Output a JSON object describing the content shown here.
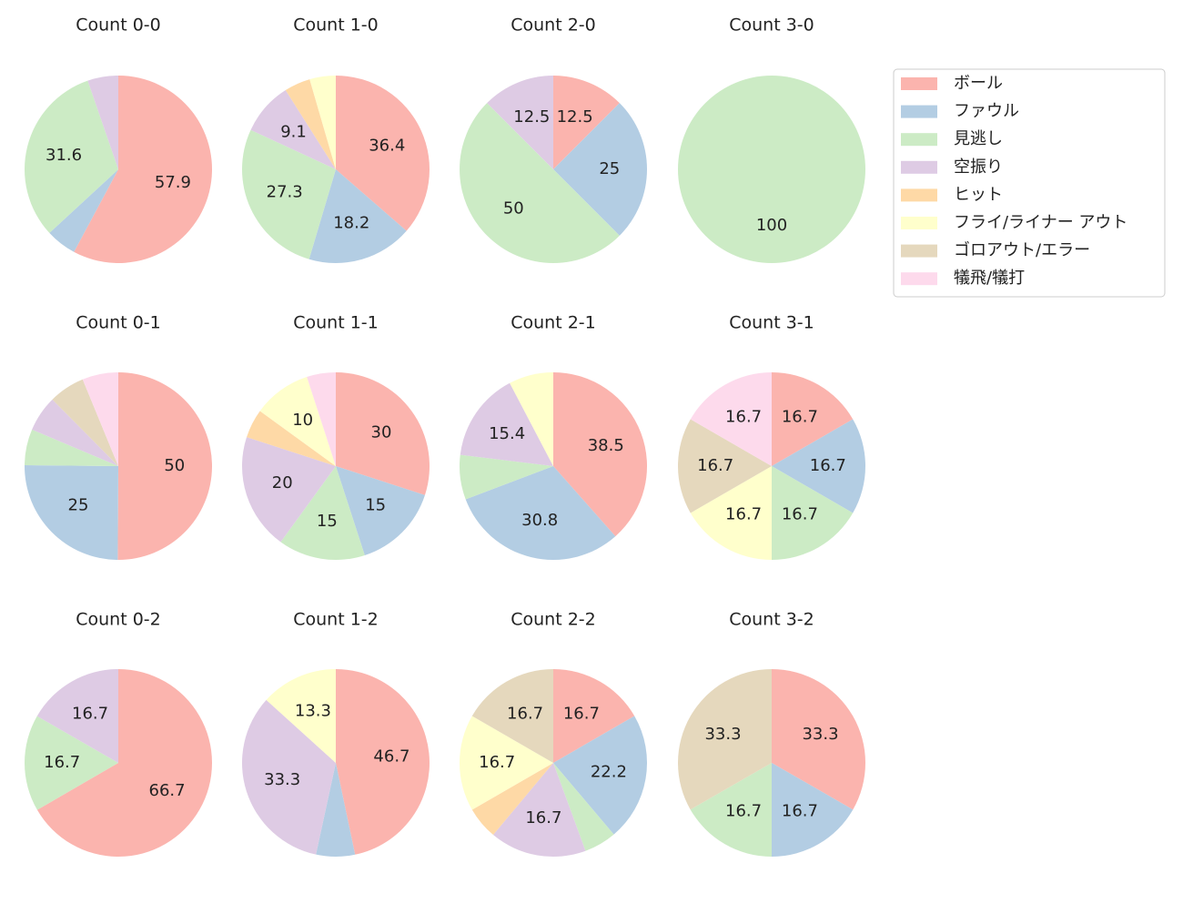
{
  "legend": {
    "labels": [
      "ボール",
      "ファウル",
      "見逃し",
      "空振り",
      "ヒット",
      "フライ/ライナー アウト",
      "ゴロアウト/エラー",
      "犠飛/犠打"
    ],
    "colors": [
      "#fbb4ae",
      "#b3cde3",
      "#ccebc5",
      "#decbe4",
      "#fed9a6",
      "#ffffcc",
      "#e5d8bd",
      "#fddaec"
    ]
  },
  "chart_data": [
    {
      "type": "pie",
      "title": "Count 0-0",
      "values": [
        57.9,
        5.3,
        31.6,
        5.3,
        0,
        0,
        0,
        0
      ]
    },
    {
      "type": "pie",
      "title": "Count 1-0",
      "values": [
        36.4,
        18.2,
        27.3,
        9.1,
        4.5,
        4.5,
        0,
        0
      ]
    },
    {
      "type": "pie",
      "title": "Count 2-0",
      "values": [
        12.5,
        25.0,
        50.0,
        12.5,
        0,
        0,
        0,
        0
      ]
    },
    {
      "type": "pie",
      "title": "Count 3-0",
      "values": [
        0,
        0,
        100.0,
        0,
        0,
        0,
        0,
        0
      ]
    },
    {
      "type": "pie",
      "title": "Count 0-1",
      "values": [
        50.0,
        25.0,
        6.2,
        6.2,
        0,
        0,
        6.2,
        6.2
      ]
    },
    {
      "type": "pie",
      "title": "Count 1-1",
      "values": [
        30.0,
        15.0,
        15.0,
        20.0,
        5.0,
        10.0,
        0,
        5.0
      ]
    },
    {
      "type": "pie",
      "title": "Count 2-1",
      "values": [
        38.5,
        30.8,
        7.7,
        15.4,
        0,
        7.7,
        0,
        0
      ]
    },
    {
      "type": "pie",
      "title": "Count 3-1",
      "values": [
        16.7,
        16.7,
        16.7,
        0,
        0,
        16.7,
        16.7,
        16.7
      ]
    },
    {
      "type": "pie",
      "title": "Count 0-2",
      "values": [
        66.7,
        0,
        16.7,
        16.7,
        0,
        0,
        0,
        0
      ]
    },
    {
      "type": "pie",
      "title": "Count 1-2",
      "values": [
        46.7,
        6.7,
        0,
        33.3,
        0,
        13.3,
        0,
        0
      ]
    },
    {
      "type": "pie",
      "title": "Count 2-2",
      "values": [
        16.7,
        22.2,
        5.6,
        16.7,
        5.6,
        16.7,
        16.7,
        0
      ]
    },
    {
      "type": "pie",
      "title": "Count 3-2",
      "values": [
        33.3,
        16.7,
        16.7,
        0,
        0,
        0,
        33.3,
        0
      ]
    }
  ]
}
